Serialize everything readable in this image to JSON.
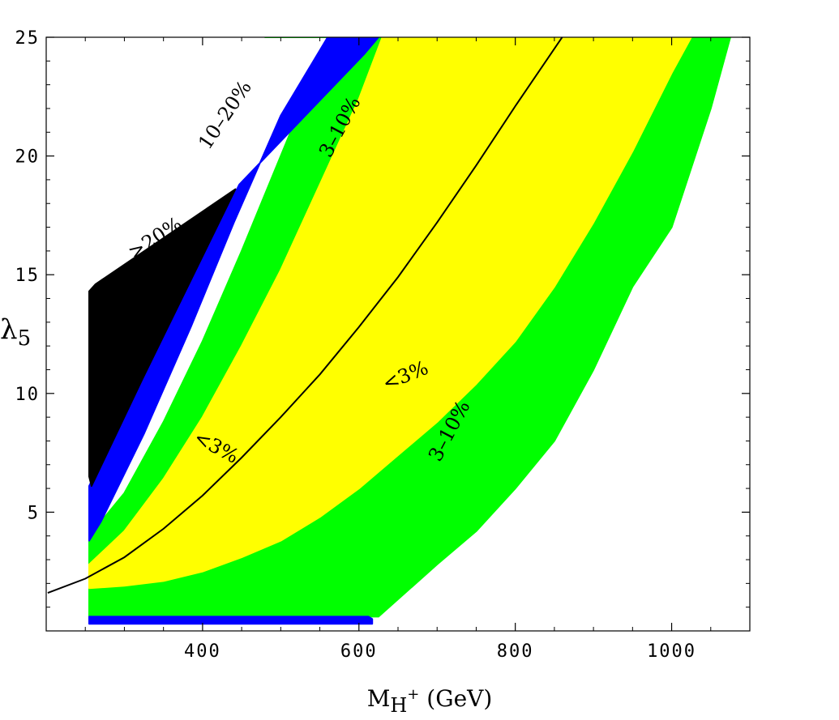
{
  "chart_data": {
    "type": "area",
    "xlabel": "M",
    "xlabel_sub": "H",
    "xlabel_sup": "+",
    "xlabel_unit": " (GeV)",
    "ylabel": "λ",
    "ylabel_sub": "5",
    "xlim": [
      200,
      1100
    ],
    "ylim": [
      0,
      25
    ],
    "xticks": [
      400,
      600,
      800,
      1000
    ],
    "yticks": [
      5,
      10,
      15,
      20,
      25
    ],
    "grid": false,
    "colors": {
      "black_region": "#000000",
      "blue_region": "#0000ff",
      "green_region": "#00ff00",
      "yellow_region": "#ffff00",
      "curve": "#000000"
    },
    "regions": [
      {
        "label": ">20%",
        "color_key": "black_region",
        "polygon": [
          [
            255,
            6.5
          ],
          [
            255,
            14.3
          ],
          [
            263,
            14.6
          ],
          [
            442,
            18.6
          ],
          [
            323,
            10.6
          ],
          [
            258,
            6.1
          ]
        ]
      },
      {
        "label": "10–20%",
        "color_key": "blue_region",
        "polygon": [
          [
            255,
            6.1
          ],
          [
            255,
            3.8
          ],
          [
            270,
            4.6
          ],
          [
            325,
            8.3
          ],
          [
            385,
            12.8
          ],
          [
            440,
            17.2
          ],
          [
            500,
            21.7
          ],
          [
            560,
            25
          ],
          [
            625,
            25
          ],
          [
            607,
            24.3
          ],
          [
            447,
            18.8
          ]
        ]
      },
      {
        "label": "",
        "color_key": "blue_region",
        "polygon": [
          [
            255,
            0.3
          ],
          [
            617,
            0.3
          ],
          [
            617,
            0.5
          ],
          [
            612,
            0.6
          ],
          [
            255,
            0.6
          ]
        ]
      },
      {
        "label": "3–10%",
        "color_key": "green_region",
        "polygon": [
          [
            255,
            4.0
          ],
          [
            300,
            5.8
          ],
          [
            350,
            8.8
          ],
          [
            400,
            12.2
          ],
          [
            450,
            16.0
          ],
          [
            500,
            20.0
          ],
          [
            540,
            23.2
          ],
          [
            560,
            24.3
          ],
          [
            560,
            25
          ],
          [
            480,
            25
          ],
          [
            1075,
            25
          ],
          [
            1050,
            22.0
          ],
          [
            1000,
            17.0
          ],
          [
            950,
            14.5
          ],
          [
            900,
            11.0
          ],
          [
            850,
            8.0
          ],
          [
            800,
            6.0
          ],
          [
            750,
            4.2
          ],
          [
            700,
            2.8
          ],
          [
            625,
            0.6
          ],
          [
            255,
            0.6
          ]
        ]
      },
      {
        "label": "<3%",
        "color_key": "yellow_region",
        "polygon": [
          [
            255,
            2.8
          ],
          [
            300,
            4.2
          ],
          [
            350,
            6.4
          ],
          [
            400,
            9.0
          ],
          [
            450,
            12.0
          ],
          [
            500,
            15.2
          ],
          [
            550,
            18.8
          ],
          [
            600,
            22.4
          ],
          [
            630,
            25
          ],
          [
            1025,
            25
          ],
          [
            1000,
            23.5
          ],
          [
            950,
            20.2
          ],
          [
            900,
            17.2
          ],
          [
            850,
            14.5
          ],
          [
            800,
            12.2
          ],
          [
            750,
            10.4
          ],
          [
            700,
            8.8
          ],
          [
            650,
            7.4
          ],
          [
            600,
            6.0
          ],
          [
            550,
            4.8
          ],
          [
            500,
            3.8
          ],
          [
            450,
            3.1
          ],
          [
            400,
            2.5
          ],
          [
            350,
            2.1
          ],
          [
            300,
            1.9
          ],
          [
            255,
            1.8
          ]
        ]
      }
    ],
    "curve": {
      "x": [
        202,
        250,
        300,
        350,
        400,
        450,
        500,
        550,
        600,
        650,
        700,
        750,
        800,
        860
      ],
      "y": [
        1.6,
        2.2,
        3.1,
        4.3,
        5.7,
        7.3,
        9.0,
        10.8,
        12.8,
        14.9,
        17.2,
        19.6,
        22.1,
        25.0
      ]
    },
    "annotations": [
      {
        "text": ">20%",
        "x": 340,
        "y": 16.5,
        "angle": -33
      },
      {
        "text": "10–20%",
        "x": 430,
        "y": 21.7,
        "angle": -56
      },
      {
        "text": "3–10%",
        "x": 577,
        "y": 21.2,
        "angle": -62
      },
      {
        "text": "<3%",
        "x": 660,
        "y": 10.7,
        "angle": -22
      },
      {
        "text": "<3%",
        "x": 417,
        "y": 7.7,
        "angle": 28
      },
      {
        "text": "3–10%",
        "x": 717,
        "y": 8.4,
        "angle": -62
      }
    ]
  }
}
